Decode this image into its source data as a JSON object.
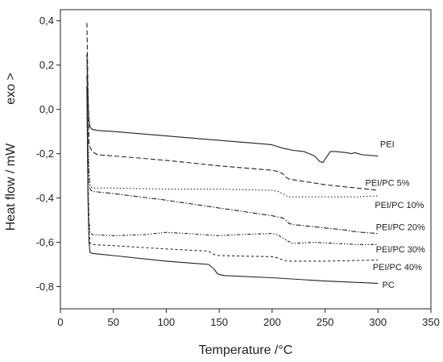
{
  "chart_data": {
    "type": "line",
    "xlabel": "Temperature /°C",
    "ylabel": "Heat flow / mW",
    "ylabel_annotation": "exo >",
    "xlim": [
      0,
      350
    ],
    "ylim": [
      -0.9,
      0.45
    ],
    "xticks": [
      0,
      50,
      100,
      150,
      200,
      250,
      300,
      350
    ],
    "xtick_labels": [
      "0",
      "50",
      "100",
      "150",
      "200",
      "250",
      "300",
      "350"
    ],
    "yticks": [
      0.4,
      0.2,
      0.0,
      -0.2,
      -0.4,
      -0.6,
      -0.8
    ],
    "ytick_labels": [
      "0,4",
      "0,2",
      "0,0",
      "-0,2",
      "-0,4",
      "-0,6",
      "-0,8"
    ],
    "grid": false,
    "legend": "none",
    "series": [
      {
        "name": "PEI",
        "dash": "solid",
        "label_at": [
          302,
          -0.155
        ],
        "x": [
          25,
          26,
          27,
          28,
          30,
          35,
          50,
          100,
          150,
          190,
          200,
          210,
          220,
          230,
          240,
          245,
          248,
          250,
          255,
          260,
          270,
          275,
          278,
          285,
          300
        ],
        "y": [
          0.25,
          0.05,
          -0.05,
          -0.08,
          -0.09,
          -0.095,
          -0.1,
          -0.12,
          -0.14,
          -0.155,
          -0.16,
          -0.175,
          -0.185,
          -0.19,
          -0.21,
          -0.235,
          -0.24,
          -0.225,
          -0.19,
          -0.19,
          -0.195,
          -0.2,
          -0.195,
          -0.205,
          -0.21
        ]
      },
      {
        "name": "PEI/PC 5%",
        "dash": "6,3",
        "label_at": [
          288,
          -0.33
        ],
        "x": [
          25,
          26,
          27,
          28,
          30,
          35,
          50,
          100,
          150,
          200,
          205,
          210,
          213,
          216,
          230,
          250,
          270,
          300
        ],
        "y": [
          0.39,
          0.1,
          -0.15,
          -0.17,
          -0.19,
          -0.205,
          -0.21,
          -0.23,
          -0.255,
          -0.275,
          -0.28,
          -0.29,
          -0.305,
          -0.315,
          -0.325,
          -0.34,
          -0.35,
          -0.365
        ]
      },
      {
        "name": "PEI/PC 10%",
        "dash": "1.5,2.5",
        "label_at": [
          297,
          -0.43
        ],
        "x": [
          25,
          26,
          27,
          28,
          30,
          50,
          100,
          150,
          200,
          205,
          210,
          215,
          220,
          240,
          260,
          280,
          300
        ],
        "y": [
          0.2,
          -0.05,
          -0.28,
          -0.345,
          -0.355,
          -0.355,
          -0.36,
          -0.36,
          -0.365,
          -0.37,
          -0.38,
          -0.395,
          -0.395,
          -0.395,
          -0.395,
          -0.395,
          -0.39
        ]
      },
      {
        "name": "PEI/PC 20%",
        "dash": "6,2,1.5,2",
        "label_at": [
          298,
          -0.53
        ],
        "x": [
          25,
          26,
          27,
          28,
          30,
          50,
          100,
          150,
          200,
          205,
          210,
          213,
          216,
          220,
          230,
          260,
          270,
          275,
          285,
          300
        ],
        "y": [
          0.15,
          -0.2,
          -0.3,
          -0.36,
          -0.37,
          -0.38,
          -0.41,
          -0.445,
          -0.48,
          -0.485,
          -0.49,
          -0.5,
          -0.515,
          -0.52,
          -0.525,
          -0.54,
          -0.545,
          -0.55,
          -0.555,
          -0.56
        ]
      },
      {
        "name": "PEI/PC 30%",
        "dash": "4,2,1.5,2,1.5,2",
        "label_at": [
          298,
          -0.63
        ],
        "x": [
          25,
          26,
          27,
          28,
          30,
          50,
          80,
          100,
          120,
          150,
          170,
          200,
          205,
          210,
          215,
          220,
          240,
          260,
          280,
          300
        ],
        "y": [
          0.1,
          -0.3,
          -0.5,
          -0.555,
          -0.565,
          -0.57,
          -0.565,
          -0.555,
          -0.56,
          -0.57,
          -0.565,
          -0.56,
          -0.565,
          -0.58,
          -0.595,
          -0.605,
          -0.6,
          -0.605,
          -0.61,
          -0.61
        ]
      },
      {
        "name": "PEI/PC 40%",
        "dash": "3,3",
        "label_at": [
          295,
          -0.71
        ],
        "x": [
          25,
          26,
          27,
          28,
          30,
          50,
          100,
          140,
          145,
          150,
          200,
          205,
          210,
          215,
          220,
          250,
          300
        ],
        "y": [
          0.1,
          -0.35,
          -0.55,
          -0.605,
          -0.61,
          -0.615,
          -0.63,
          -0.64,
          -0.655,
          -0.66,
          -0.665,
          -0.67,
          -0.68,
          -0.685,
          -0.685,
          -0.685,
          -0.68
        ]
      },
      {
        "name": "PC",
        "dash": "solid",
        "label_at": [
          304,
          -0.79
        ],
        "x": [
          25,
          26,
          27,
          28,
          30,
          50,
          100,
          140,
          145,
          148,
          150,
          155,
          200,
          250,
          300
        ],
        "y": [
          0.1,
          -0.4,
          -0.6,
          -0.645,
          -0.65,
          -0.66,
          -0.685,
          -0.7,
          -0.72,
          -0.74,
          -0.745,
          -0.75,
          -0.76,
          -0.775,
          -0.785
        ]
      }
    ]
  }
}
